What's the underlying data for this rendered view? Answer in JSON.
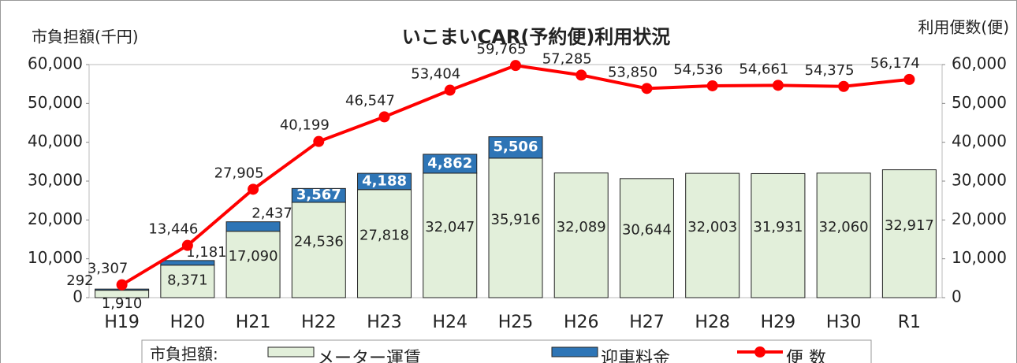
{
  "chart_data": {
    "type": "bar-line",
    "title": "いこまいCAR(予約便)利用状況",
    "y_label": "市負担額(千円)",
    "y2_label": "利用便数(便)",
    "legend_title": "市負担額:",
    "categories": [
      "H19",
      "H20",
      "H21",
      "H22",
      "H23",
      "H24",
      "H25",
      "H26",
      "H27",
      "H28",
      "H29",
      "H30",
      "R1"
    ],
    "series": [
      {
        "name": "メーター運賃",
        "type": "bar",
        "color": "#e2efda",
        "values": [
          1910,
          8371,
          17090,
          24536,
          27818,
          32047,
          35916,
          32089,
          30644,
          32003,
          31931,
          32060,
          32917
        ],
        "value_labels": [
          "1,910",
          "8,371",
          "17,090",
          "24,536",
          "27,818",
          "32,047",
          "35,916",
          "32,089",
          "30,644",
          "32,003",
          "31,931",
          "32,060",
          "32,917"
        ]
      },
      {
        "name": "迎車料金",
        "type": "bar",
        "color": "#2e75b6",
        "values": [
          292,
          1181,
          2437,
          3567,
          4188,
          4862,
          5506,
          null,
          null,
          null,
          null,
          null,
          null
        ],
        "value_labels": [
          "292",
          "1,181",
          "2,437",
          "3,567",
          "4,188",
          "4,862",
          "5,506",
          null,
          null,
          null,
          null,
          null,
          null
        ]
      },
      {
        "name": "便 数",
        "type": "line",
        "axis": "y2",
        "color": "#ff0000",
        "values": [
          3307,
          13446,
          27905,
          40199,
          46547,
          53404,
          59765,
          57285,
          53850,
          54536,
          54661,
          54375,
          56174
        ],
        "value_labels": [
          "3,307",
          "13,446",
          "27,905",
          "40,199",
          "46,547",
          "53,404",
          "59,765",
          "57,285",
          "53,850",
          "54,536",
          "54,661",
          "54,375",
          "56,174"
        ]
      }
    ],
    "ylim": [
      0,
      60000
    ],
    "yticks": [
      0,
      {
        "value": 10000,
        "label": "10,000"
      },
      {
        "value": 20000,
        "label": "20,000"
      },
      {
        "value": 30000,
        "label": "30,000"
      },
      {
        "value": 40000,
        "label": "40,000"
      },
      {
        "value": 50000,
        "label": "50,000"
      },
      {
        "value": 60000,
        "label": "60,000"
      }
    ],
    "y2lim": [
      0,
      60000
    ],
    "y2ticks": [
      0,
      {
        "value": 10000,
        "label": "10,000"
      },
      {
        "value": 20000,
        "label": "20,000"
      },
      {
        "value": 30000,
        "label": "30,000"
      },
      {
        "value": 40000,
        "label": "40,000"
      },
      {
        "value": 50000,
        "label": "50,000"
      },
      {
        "value": 60000,
        "label": "60,000"
      }
    ],
    "grid": false,
    "legend": "bottom"
  }
}
